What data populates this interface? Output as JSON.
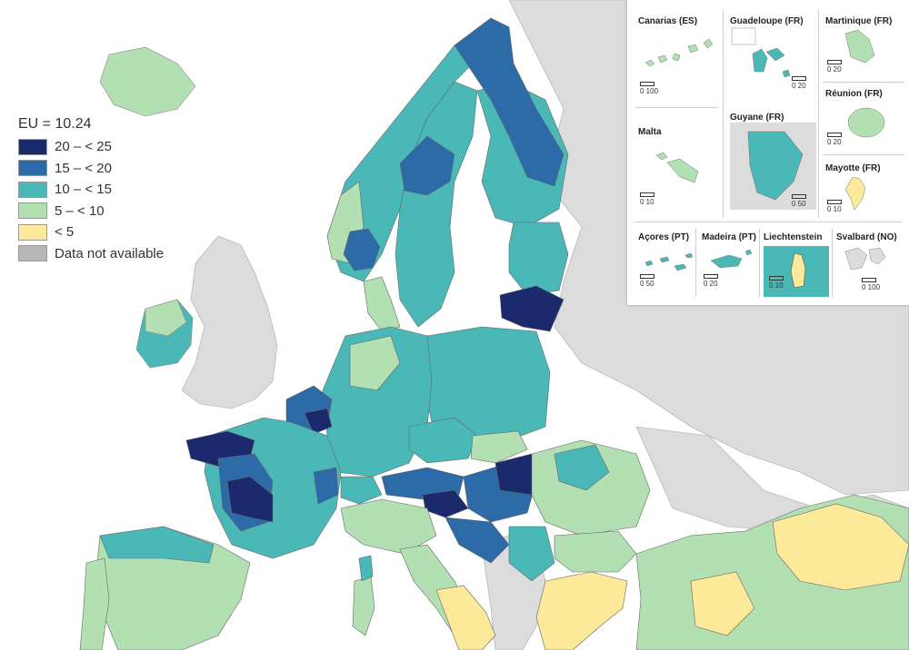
{
  "legend": {
    "title": "EU = 10.24",
    "items": [
      {
        "label": "20 – < 25",
        "color": "#1a2a6c"
      },
      {
        "label": "15 – < 20",
        "color": "#2c6aa8"
      },
      {
        "label": "10 – < 15",
        "color": "#4bb8b8"
      },
      {
        "label": "5 – < 10",
        "color": "#b3e0b3"
      },
      {
        "label": "< 5",
        "color": "#fce99a"
      },
      {
        "label": "Data not available",
        "color": "#b8b8b8"
      }
    ]
  },
  "insets": {
    "canarias": {
      "title": "Canarias (ES)",
      "scale": "0  100"
    },
    "guadeloupe": {
      "title": "Guadeloupe (FR)",
      "scale": "0  20"
    },
    "martinique": {
      "title": "Martinique (FR)",
      "scale": "0  20"
    },
    "reunion": {
      "title": "Réunion (FR)",
      "scale": "0  20"
    },
    "malta": {
      "title": "Malta",
      "scale": "0  10"
    },
    "guyane": {
      "title": "Guyane (FR)",
      "scale": "0  50"
    },
    "mayotte": {
      "title": "Mayotte (FR)",
      "scale": "0  10"
    },
    "acores": {
      "title": "Açores (PT)",
      "scale": "0  50"
    },
    "madeira": {
      "title": "Madeira (PT)",
      "scale": "0  20"
    },
    "liechtenstein": {
      "title": "Liechtenstein",
      "scale": "0  10"
    },
    "svalbard": {
      "title": "Svalbard (NO)",
      "scale": "0  100"
    }
  },
  "colors": {
    "sea": "#ffffff",
    "non_eu": "#dcdcdc",
    "border": "#555555"
  }
}
